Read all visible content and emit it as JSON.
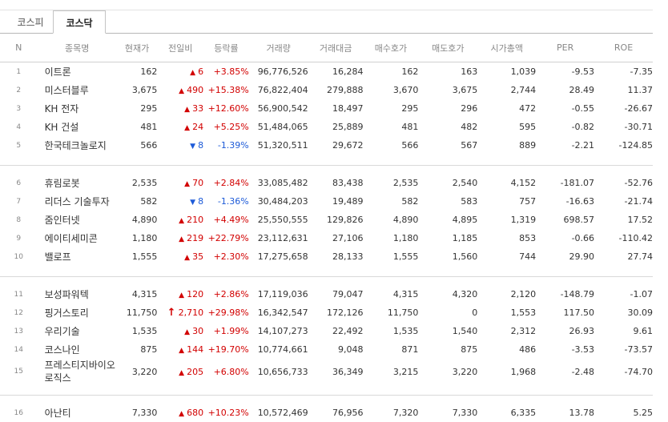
{
  "tabs": [
    {
      "label": "코스피",
      "active": false
    },
    {
      "label": "코스닥",
      "active": true
    }
  ],
  "columns": [
    "N",
    "종목명",
    "현재가",
    "전일비",
    "등락률",
    "거래량",
    "거래대금",
    "매수호가",
    "매도호가",
    "시가총액",
    "PER",
    "ROE"
  ],
  "colors": {
    "up": "#d20000",
    "down": "#1e5bd8"
  },
  "groups": [
    {
      "rows": [
        {
          "n": "1",
          "name": "이트론",
          "price": "162",
          "dir": "up",
          "change": "6",
          "rate": "+3.85%",
          "volume": "96,776,526",
          "amount": "16,284",
          "bid": "162",
          "ask": "163",
          "cap": "1,039",
          "per": "-9.53",
          "roe": "-7.35"
        },
        {
          "n": "2",
          "name": "미스터블루",
          "price": "3,675",
          "dir": "up",
          "change": "490",
          "rate": "+15.38%",
          "volume": "76,822,404",
          "amount": "279,888",
          "bid": "3,670",
          "ask": "3,675",
          "cap": "2,744",
          "per": "28.49",
          "roe": "11.37"
        },
        {
          "n": "3",
          "name": "KH 전자",
          "price": "295",
          "dir": "up",
          "change": "33",
          "rate": "+12.60%",
          "volume": "56,900,542",
          "amount": "18,497",
          "bid": "295",
          "ask": "296",
          "cap": "472",
          "per": "-0.55",
          "roe": "-26.67"
        },
        {
          "n": "4",
          "name": "KH 건설",
          "price": "481",
          "dir": "up",
          "change": "24",
          "rate": "+5.25%",
          "volume": "51,484,065",
          "amount": "25,889",
          "bid": "481",
          "ask": "482",
          "cap": "595",
          "per": "-0.82",
          "roe": "-30.71"
        },
        {
          "n": "5",
          "name": "한국테크놀로지",
          "price": "566",
          "dir": "down",
          "change": "8",
          "rate": "-1.39%",
          "volume": "51,320,511",
          "amount": "29,672",
          "bid": "566",
          "ask": "567",
          "cap": "889",
          "per": "-2.21",
          "roe": "-124.85"
        }
      ]
    },
    {
      "rows": [
        {
          "n": "6",
          "name": "휴림로봇",
          "price": "2,535",
          "dir": "up",
          "change": "70",
          "rate": "+2.84%",
          "volume": "33,085,482",
          "amount": "83,438",
          "bid": "2,535",
          "ask": "2,540",
          "cap": "4,152",
          "per": "-181.07",
          "roe": "-52.76"
        },
        {
          "n": "7",
          "name": "리더스 기술투자",
          "price": "582",
          "dir": "down",
          "change": "8",
          "rate": "-1.36%",
          "volume": "30,484,203",
          "amount": "19,489",
          "bid": "582",
          "ask": "583",
          "cap": "757",
          "per": "-16.63",
          "roe": "-21.74"
        },
        {
          "n": "8",
          "name": "줌인터넷",
          "price": "4,890",
          "dir": "up",
          "change": "210",
          "rate": "+4.49%",
          "volume": "25,550,555",
          "amount": "129,826",
          "bid": "4,890",
          "ask": "4,895",
          "cap": "1,319",
          "per": "698.57",
          "roe": "17.52"
        },
        {
          "n": "9",
          "name": "에이티세미콘",
          "price": "1,180",
          "dir": "up",
          "change": "219",
          "rate": "+22.79%",
          "volume": "23,112,631",
          "amount": "27,106",
          "bid": "1,180",
          "ask": "1,185",
          "cap": "853",
          "per": "-0.66",
          "roe": "-110.42"
        },
        {
          "n": "10",
          "name": "밸로프",
          "price": "1,555",
          "dir": "up",
          "change": "35",
          "rate": "+2.30%",
          "volume": "17,275,658",
          "amount": "28,133",
          "bid": "1,555",
          "ask": "1,560",
          "cap": "744",
          "per": "29.90",
          "roe": "27.74"
        }
      ]
    },
    {
      "rows": [
        {
          "n": "11",
          "name": "보성파워텍",
          "price": "4,315",
          "dir": "up",
          "change": "120",
          "rate": "+2.86%",
          "volume": "17,119,036",
          "amount": "79,047",
          "bid": "4,315",
          "ask": "4,320",
          "cap": "2,120",
          "per": "-148.79",
          "roe": "-1.07"
        },
        {
          "n": "12",
          "name": "핑거스토리",
          "price": "11,750",
          "dir": "upper",
          "change": "2,710",
          "rate": "+29.98%",
          "volume": "16,342,547",
          "amount": "172,126",
          "bid": "11,750",
          "ask": "0",
          "cap": "1,553",
          "per": "117.50",
          "roe": "30.09"
        },
        {
          "n": "13",
          "name": "우리기술",
          "price": "1,535",
          "dir": "up",
          "change": "30",
          "rate": "+1.99%",
          "volume": "14,107,273",
          "amount": "22,492",
          "bid": "1,535",
          "ask": "1,540",
          "cap": "2,312",
          "per": "26.93",
          "roe": "9.61"
        },
        {
          "n": "14",
          "name": "코스나인",
          "price": "875",
          "dir": "up",
          "change": "144",
          "rate": "+19.70%",
          "volume": "10,774,661",
          "amount": "9,048",
          "bid": "871",
          "ask": "875",
          "cap": "486",
          "per": "-3.53",
          "roe": "-73.57"
        },
        {
          "n": "15",
          "name": "프레스티지바이오로직스",
          "price": "3,220",
          "dir": "up",
          "change": "205",
          "rate": "+6.80%",
          "volume": "10,656,733",
          "amount": "36,349",
          "bid": "3,215",
          "ask": "3,220",
          "cap": "1,968",
          "per": "-2.48",
          "roe": "-74.70"
        }
      ]
    },
    {
      "rows": [
        {
          "n": "16",
          "name": "아난티",
          "price": "7,330",
          "dir": "up",
          "change": "680",
          "rate": "+10.23%",
          "volume": "10,572,469",
          "amount": "76,956",
          "bid": "7,320",
          "ask": "7,330",
          "cap": "6,335",
          "per": "13.78",
          "roe": "5.25"
        }
      ]
    }
  ]
}
